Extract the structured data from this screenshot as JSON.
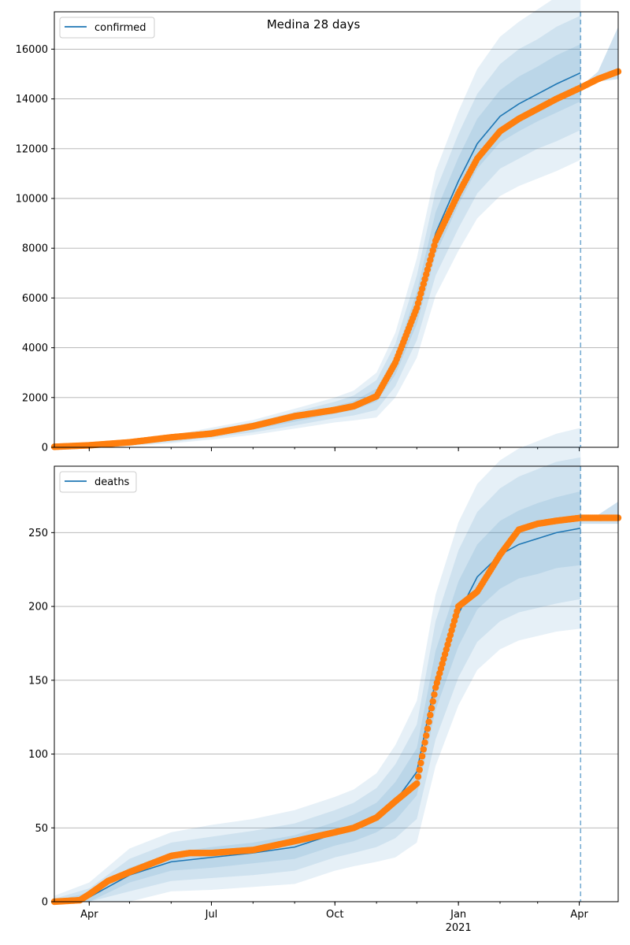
{
  "title": "Medina 28 days",
  "colors": {
    "model": "#1f77b4",
    "observed": "#ff7f0e",
    "band": "#1f77b4",
    "grid": "#b0b0b0",
    "forecast_line": "#1f77b4"
  },
  "chart_data": [
    {
      "type": "line",
      "legend": "confirmed",
      "legend_position": "top-left",
      "grid": "horizontal",
      "xlim": [
        "2020-03-06",
        "2021-04-30"
      ],
      "ylim": [
        0,
        17500
      ],
      "yticks": [
        0,
        2000,
        4000,
        6000,
        8000,
        10000,
        12000,
        14000,
        16000
      ],
      "forecast_start": "2021-04-02",
      "model": {
        "x": [
          "2020-03-06",
          "2020-04-01",
          "2020-05-01",
          "2020-06-01",
          "2020-07-01",
          "2020-08-01",
          "2020-09-01",
          "2020-10-01",
          "2020-10-15",
          "2020-11-01",
          "2020-11-15",
          "2020-12-01",
          "2020-12-15",
          "2021-01-01",
          "2021-01-15",
          "2021-02-01",
          "2021-02-15",
          "2021-03-01",
          "2021-03-15",
          "2021-04-02"
        ],
        "y": [
          20,
          60,
          150,
          320,
          550,
          800,
          1150,
          1500,
          1680,
          2100,
          3300,
          5600,
          8600,
          10700,
          12200,
          13300,
          13800,
          14200,
          14600,
          15050
        ],
        "band_widths": [
          [
            0,
            60,
            100,
            160,
            240,
            300,
            400,
            500,
            600,
            900,
            1300,
            2000,
            2500,
            2800,
            3000,
            3200,
            3300,
            3400,
            3500,
            3500
          ],
          [
            0,
            40,
            70,
            110,
            160,
            200,
            270,
            330,
            400,
            600,
            850,
            1300,
            1700,
            1900,
            2000,
            2100,
            2200,
            2200,
            2300,
            2300
          ],
          [
            0,
            20,
            30,
            50,
            70,
            90,
            120,
            150,
            180,
            260,
            380,
            650,
            850,
            950,
            1000,
            1050,
            1100,
            1100,
            1150,
            1150
          ]
        ]
      },
      "observed": {
        "x": [
          "2020-03-06",
          "2020-04-01",
          "2020-05-01",
          "2020-06-01",
          "2020-07-01",
          "2020-08-01",
          "2020-09-01",
          "2020-10-01",
          "2020-10-15",
          "2020-11-01",
          "2020-11-15",
          "2020-12-01",
          "2020-12-15",
          "2021-01-01",
          "2021-01-15",
          "2021-02-01",
          "2021-02-15",
          "2021-03-01",
          "2021-03-15",
          "2021-04-02",
          "2021-04-15",
          "2021-04-30"
        ],
        "y": [
          20,
          80,
          200,
          400,
          550,
          850,
          1250,
          1500,
          1650,
          2050,
          3400,
          5600,
          8300,
          10200,
          11600,
          12700,
          13200,
          13600,
          14000,
          14450,
          14800,
          15100
        ]
      },
      "future_band": {
        "x": [
          "2021-04-02",
          "2021-04-15",
          "2021-04-30"
        ],
        "upper": [
          14500,
          15100,
          16900
        ],
        "lower": [
          14500,
          14700,
          14800
        ]
      }
    },
    {
      "type": "line",
      "legend": "deaths",
      "legend_position": "top-left",
      "grid": "horizontal",
      "xlim": [
        "2020-03-06",
        "2021-04-30"
      ],
      "ylim": [
        0,
        295
      ],
      "yticks": [
        0,
        50,
        100,
        150,
        200,
        250
      ],
      "xticks": [
        {
          "date": "2020-04-01",
          "label": "Apr"
        },
        {
          "date": "2020-07-01",
          "label": "Jul"
        },
        {
          "date": "2020-10-01",
          "label": "Oct"
        },
        {
          "date": "2021-01-01",
          "label": "Jan",
          "sublabel": "2021"
        },
        {
          "date": "2021-04-01",
          "label": "Apr"
        }
      ],
      "forecast_start": "2021-04-02",
      "model": {
        "x": [
          "2020-03-06",
          "2020-04-01",
          "2020-05-01",
          "2020-06-01",
          "2020-07-01",
          "2020-08-01",
          "2020-09-01",
          "2020-10-01",
          "2020-10-15",
          "2020-11-01",
          "2020-11-15",
          "2020-12-01",
          "2020-12-15",
          "2021-01-01",
          "2021-01-15",
          "2021-02-01",
          "2021-02-15",
          "2021-03-01",
          "2021-03-15",
          "2021-04-02"
        ],
        "y": [
          0,
          3,
          18,
          27,
          30,
          33,
          37,
          46,
          50,
          57,
          68,
          88,
          150,
          195,
          220,
          235,
          242,
          246,
          250,
          253
        ],
        "band_widths": [
          [
            4,
            10,
            18,
            20,
            22,
            23,
            25,
            25,
            26,
            30,
            38,
            48,
            58,
            62,
            63,
            64,
            65,
            66,
            67,
            68
          ],
          [
            2,
            6,
            11,
            13,
            14,
            15,
            16,
            16,
            17,
            20,
            25,
            32,
            40,
            43,
            44,
            45,
            46,
            47,
            48,
            48
          ],
          [
            1,
            3,
            5,
            6,
            7,
            7,
            8,
            8,
            9,
            10,
            13,
            16,
            20,
            22,
            22,
            23,
            23,
            24,
            24,
            25
          ]
        ]
      },
      "observed": {
        "x": [
          "2020-03-06",
          "2020-03-25",
          "2020-04-01",
          "2020-04-15",
          "2020-05-01",
          "2020-05-15",
          "2020-06-01",
          "2020-06-15",
          "2020-07-01",
          "2020-08-01",
          "2020-09-01",
          "2020-10-01",
          "2020-10-15",
          "2020-11-01",
          "2020-11-15",
          "2020-12-01",
          "2020-12-15",
          "2021-01-01",
          "2021-01-15",
          "2021-02-01",
          "2021-02-15",
          "2021-03-01",
          "2021-03-15",
          "2021-04-02",
          "2021-04-15",
          "2021-04-30"
        ],
        "y": [
          0,
          1,
          5,
          14,
          20,
          25,
          31,
          33,
          33,
          35,
          41,
          47,
          50,
          57,
          68,
          80,
          145,
          200,
          210,
          235,
          252,
          256,
          258,
          260,
          260,
          260
        ]
      },
      "future_band": {
        "x": [
          "2021-04-02",
          "2021-04-15",
          "2021-04-30"
        ],
        "upper": [
          258,
          262,
          271
        ],
        "lower": [
          256,
          256,
          256
        ]
      }
    }
  ]
}
